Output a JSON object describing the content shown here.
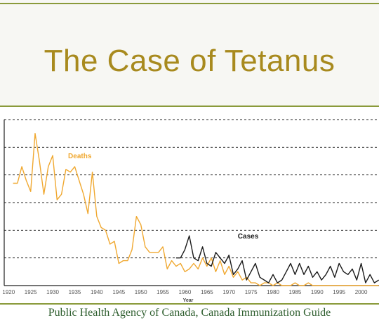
{
  "slide": {
    "title": "The Case of Tetanus",
    "footer": "Public Health Agency of Canada, Canada Immunization Guide"
  },
  "colors": {
    "title": "#a88a1e",
    "accent_rule": "#8a9a3a",
    "deaths": "#f0a830",
    "cases": "#1a1a1a",
    "footer": "#2e5e2e"
  },
  "chart_data": {
    "type": "line",
    "title": "",
    "xlabel": "Year",
    "ylabel": "",
    "xlim": [
      1919,
      2005
    ],
    "ylim": [
      0,
      60
    ],
    "x_ticks": [
      1920,
      1925,
      1930,
      1935,
      1940,
      1945,
      1950,
      1955,
      1960,
      1965,
      1970,
      1975,
      1980,
      1985,
      1990,
      1995,
      2000
    ],
    "x_tick_labels": [
      "1920",
      "1925",
      "1930",
      "1935",
      "1940",
      "1945",
      "1950",
      "1955",
      "1960",
      "1965",
      "1970",
      "1975",
      "1980",
      "1985",
      "1990",
      "1995",
      "2000"
    ],
    "y_gridlines": [
      10,
      20,
      30,
      40,
      50,
      60
    ],
    "grid": true,
    "series": [
      {
        "name": "Deaths",
        "x": [
          1921,
          1922,
          1923,
          1924,
          1925,
          1926,
          1927,
          1928,
          1929,
          1930,
          1931,
          1932,
          1933,
          1934,
          1935,
          1936,
          1937,
          1938,
          1939,
          1940,
          1941,
          1942,
          1943,
          1944,
          1945,
          1946,
          1947,
          1948,
          1949,
          1950,
          1951,
          1952,
          1953,
          1954,
          1955,
          1956,
          1957,
          1958,
          1959,
          1960,
          1961,
          1962,
          1963,
          1964,
          1965,
          1966,
          1967,
          1968,
          1969,
          1970,
          1971,
          1972,
          1973,
          1974,
          1975,
          1976,
          1977,
          1978,
          1979,
          1980,
          1981,
          1982,
          1983,
          1984,
          1985,
          1986,
          1987,
          1988,
          1989,
          1990,
          1991,
          1992,
          1993,
          1994,
          1995,
          1996,
          1997,
          1998,
          1999,
          2000,
          2001,
          2002,
          2003,
          2004
        ],
        "values": [
          37,
          37,
          43,
          38,
          34,
          55,
          45,
          33,
          43,
          47,
          31,
          33,
          42,
          41,
          43,
          38,
          33,
          26,
          41,
          25,
          21,
          20,
          15,
          16,
          8,
          9,
          9,
          13,
          25,
          22,
          14,
          12,
          12,
          12,
          14,
          6,
          9,
          7,
          8,
          5,
          6,
          8,
          6,
          10,
          7,
          10,
          5,
          9,
          4,
          7,
          3,
          5,
          2,
          3,
          1,
          1,
          0,
          1,
          1,
          0,
          1,
          0,
          0,
          0,
          1,
          0,
          0,
          1,
          0,
          0,
          0,
          0,
          0,
          0,
          0,
          0,
          0,
          0,
          0,
          0,
          0,
          0,
          0,
          0
        ]
      },
      {
        "name": "Cases",
        "x": [
          1958,
          1959,
          1960,
          1961,
          1962,
          1963,
          1964,
          1965,
          1966,
          1967,
          1968,
          1969,
          1970,
          1971,
          1972,
          1973,
          1974,
          1975,
          1976,
          1977,
          1978,
          1979,
          1980,
          1981,
          1982,
          1983,
          1984,
          1985,
          1986,
          1987,
          1988,
          1989,
          1990,
          1991,
          1992,
          1993,
          1994,
          1995,
          1996,
          1997,
          1998,
          1999,
          2000,
          2001,
          2002,
          2003,
          2004
        ],
        "values": [
          10,
          10,
          13,
          18,
          10,
          9,
          14,
          8,
          7,
          12,
          10,
          8,
          11,
          4,
          6,
          9,
          2,
          5,
          8,
          3,
          2,
          1,
          4,
          1,
          2,
          5,
          8,
          4,
          8,
          4,
          7,
          3,
          5,
          2,
          4,
          7,
          3,
          8,
          5,
          4,
          6,
          2,
          8,
          1,
          4,
          1,
          2
        ]
      }
    ],
    "annotations": [
      {
        "text": "Deaths",
        "series": "Deaths"
      },
      {
        "text": "Cases",
        "series": "Cases"
      }
    ]
  }
}
